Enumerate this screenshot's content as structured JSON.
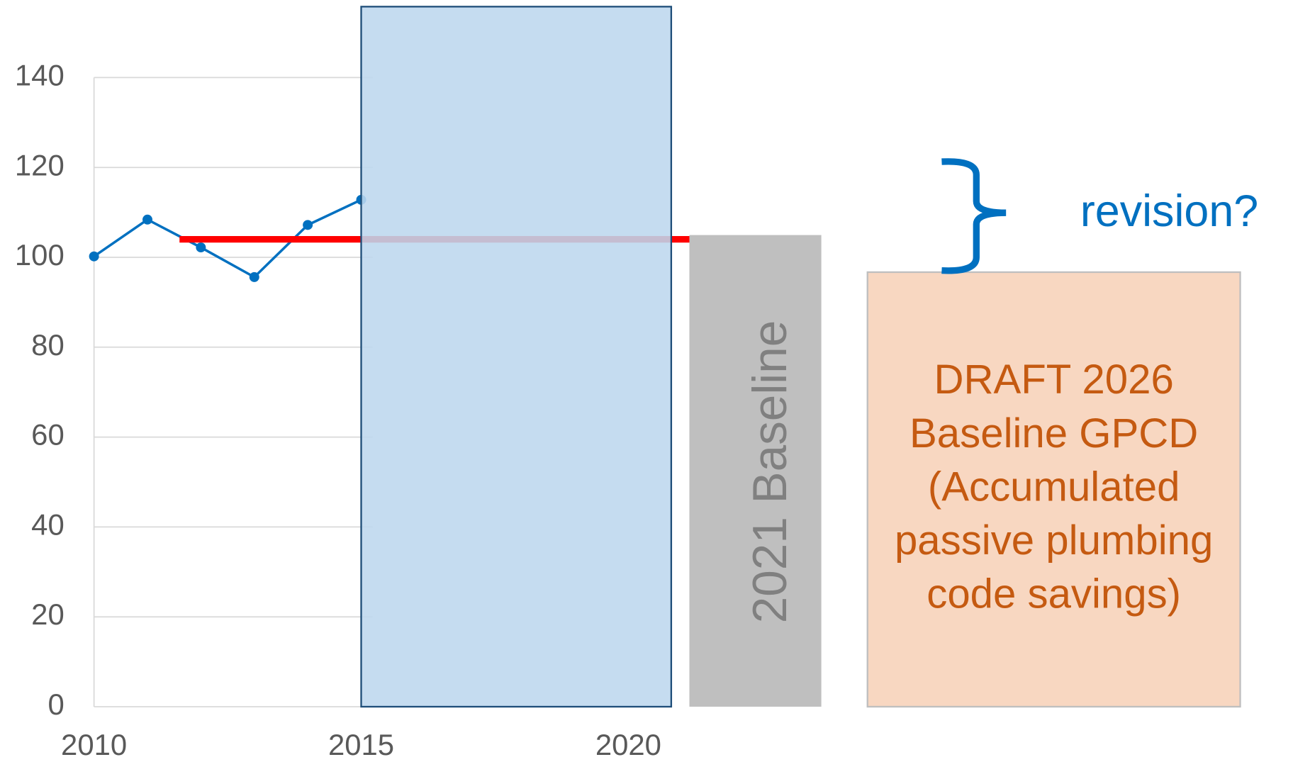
{
  "chart_data": {
    "type": "line",
    "x": [
      2010,
      2011,
      2012,
      2013,
      2014,
      2015
    ],
    "series": [
      {
        "color": "#0070c0",
        "values": [
          100.2,
          108.4,
          102.2,
          95.6,
          107.2,
          112.8
        ]
      }
    ],
    "reference_line": {
      "value": 104,
      "color": "#ff0000",
      "x": [
        2011.6,
        2023.5
      ]
    },
    "xlim": [
      2010,
      2030
    ],
    "xticks": [
      2010,
      2015,
      2020
    ],
    "ylim": [
      0,
      140
    ],
    "yticks": [
      0,
      20,
      40,
      60,
      80,
      100,
      120,
      140
    ],
    "grid": true,
    "annotations": {
      "revision": "revision?",
      "baseline_2021": "2021 Baseline",
      "draft_2026": [
        "DRAFT 2026",
        "Baseline GPCD",
        "(Accumulated",
        "passive plumbing",
        "code savings)"
      ]
    }
  }
}
